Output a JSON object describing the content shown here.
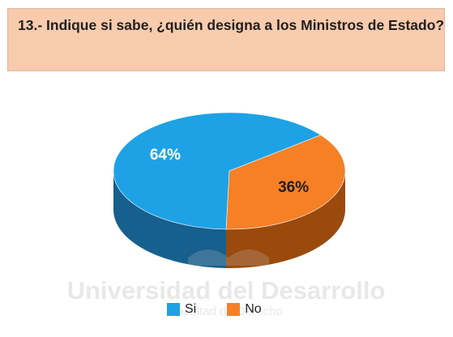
{
  "header": {
    "question": "13.- Indique si sabe, ¿quién designa a los Ministros de Estado?",
    "background_color": "#f8cbad"
  },
  "watermark": {
    "text": "Universidad del Desarrollo",
    "subtext": "Facultad de Derecho"
  },
  "chart_data": {
    "type": "pie",
    "title": "",
    "categories": [
      "Si",
      "No"
    ],
    "values": [
      64,
      36
    ],
    "labels": [
      "64%",
      "36%"
    ],
    "colors": [
      "#1ea2e6",
      "#f58026"
    ],
    "side_colors": [
      "#175f8c",
      "#9a4a0d"
    ],
    "legend_position": "bottom",
    "three_d": true
  }
}
